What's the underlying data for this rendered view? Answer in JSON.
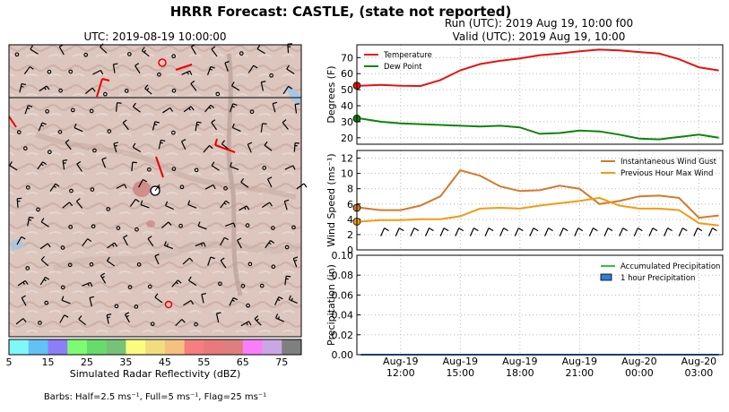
{
  "title": "HRRR Forecast: CASTLE, (state not reported)",
  "map": {
    "time_label": "UTC: 2019-08-19 10:00:00",
    "colorbar_label": "Simulated Radar Reflectivity (dBZ)",
    "colorbar_ticks": [
      "5",
      "15",
      "25",
      "35",
      "45",
      "55",
      "65",
      "75"
    ],
    "colorbar_colors": [
      "#7ef8f8",
      "#62c2f6",
      "#8b7ef7",
      "#7dfb72",
      "#68dc6a",
      "#78c278",
      "#fbfb7e",
      "#f1dd7e",
      "#f6c17f",
      "#f77e7e",
      "#e87a7a",
      "#de7e7e",
      "#fa7efb",
      "#c9a7e4",
      "#7f7f7f"
    ],
    "barb_legend": "Barbs: Half=2.5 ms⁻¹, Full=5 ms⁻¹, Flag=25 ms⁻¹"
  },
  "run_label": "Run (UTC): 2019 Aug 19, 10:00 f00",
  "valid_label": "Valid (UTC): 2019 Aug 19, 10:00",
  "chart_data": [
    {
      "type": "line",
      "ylabel": "Degrees (F)",
      "ylim": [
        16,
        78
      ],
      "yticks": [
        20,
        30,
        40,
        50,
        60,
        70
      ],
      "grid": true,
      "legend": "top-left",
      "x_hours": [
        0,
        1,
        2,
        3,
        4,
        5,
        6,
        7,
        8,
        9,
        10,
        11,
        12,
        13,
        14,
        15,
        16,
        17,
        18
      ],
      "series": [
        {
          "name": "Temperature",
          "color": "#e8120f",
          "values": [
            52.5,
            53,
            52.5,
            52.3,
            56,
            62,
            66,
            68,
            69.5,
            71.5,
            72.5,
            74,
            75,
            74.5,
            73.5,
            72.5,
            69,
            64,
            62
          ]
        },
        {
          "name": "Dew Point",
          "color": "#0d840c",
          "values": [
            32,
            30,
            29,
            28.5,
            28,
            27.5,
            27,
            27.5,
            26.5,
            22.5,
            23,
            24.5,
            24,
            22,
            19.5,
            19,
            20.5,
            22,
            20
          ]
        }
      ]
    },
    {
      "type": "line",
      "ylabel": "Wind Speed (ms⁻¹)",
      "ylim": [
        0,
        13
      ],
      "yticks": [
        0,
        2,
        4,
        6,
        8,
        10,
        12
      ],
      "grid": true,
      "legend": "top-right",
      "x_hours": [
        0,
        1,
        2,
        3,
        4,
        5,
        6,
        7,
        8,
        9,
        10,
        11,
        12,
        13,
        14,
        15,
        16,
        17,
        18
      ],
      "series": [
        {
          "name": "Instantaneous Wind Gust",
          "color": "#d5782a",
          "values": [
            5.5,
            5.2,
            5.2,
            5.8,
            7,
            10.4,
            9.7,
            8.3,
            7.7,
            7.8,
            8.4,
            8,
            6,
            6.4,
            7,
            7.1,
            6.8,
            4.2,
            4.5
          ]
        },
        {
          "name": "Previous Hour Max Wind",
          "color": "#f29b12",
          "values": [
            3.7,
            3.9,
            3.9,
            4,
            4,
            4.4,
            5.4,
            5.5,
            5.4,
            5.8,
            6.1,
            6.4,
            6.8,
            5.8,
            5.4,
            5.4,
            5.2,
            3.5,
            3.2
          ]
        }
      ]
    },
    {
      "type": "line",
      "ylabel": "Precipitation (in)",
      "ylim": [
        0,
        0.1
      ],
      "yticks": [
        "0.00",
        "0.02",
        "0.04",
        "0.06",
        "0.08",
        "0.10"
      ],
      "grid": true,
      "legend": "top-right",
      "x_hours": [
        0,
        18
      ],
      "series": [
        {
          "name": "Accumulated Precipitation",
          "color": "#36c23e",
          "values": [
            0,
            0
          ]
        },
        {
          "name": "1 hour Precipitation",
          "color": "#2f7fd8",
          "values": [
            0,
            0
          ]
        }
      ]
    }
  ],
  "x_ticks": [
    {
      "hour": 2,
      "label1": "Aug-19",
      "label2": "12:00"
    },
    {
      "hour": 5,
      "label1": "Aug-19",
      "label2": "15:00"
    },
    {
      "hour": 8,
      "label1": "Aug-19",
      "label2": "18:00"
    },
    {
      "hour": 11,
      "label1": "Aug-19",
      "label2": "21:00"
    },
    {
      "hour": 14,
      "label1": "Aug-20",
      "label2": "00:00"
    },
    {
      "hour": 17,
      "label1": "Aug-20",
      "label2": "03:00"
    }
  ]
}
